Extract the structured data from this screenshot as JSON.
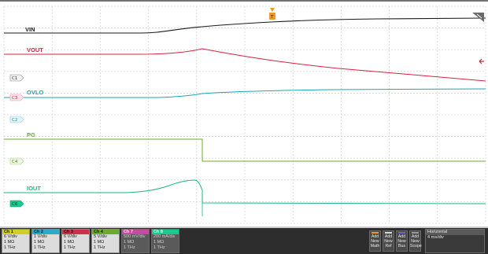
{
  "traces": {
    "vin": {
      "label": "VIN",
      "color": "#1a1a1a"
    },
    "vout": {
      "label": "VOUT",
      "color": "#d8213f"
    },
    "ovlo": {
      "label": "OVLO",
      "color": "#1aa6b7"
    },
    "pg": {
      "label": "PG",
      "color": "#6cab2f"
    },
    "iout": {
      "label": "IOUT",
      "color": "#19b77e"
    }
  },
  "markers": {
    "c1": "C1",
    "c2": "C2",
    "c3": "C3",
    "c4": "C4",
    "c6": "C6",
    "trigger": "T"
  },
  "channels": [
    {
      "name": "Ch 1",
      "scale": "6 V/div",
      "impedance": "1 MΩ",
      "bw": "1 THz",
      "color": "#cfcf2a"
    },
    {
      "name": "Ch 2",
      "scale": "1 V/div",
      "impedance": "1 MΩ",
      "bw": "1 THz",
      "color": "#2aa9c9"
    },
    {
      "name": "Ch 3",
      "scale": "6 V/div",
      "impedance": "1 MΩ",
      "bw": "1 THz",
      "color": "#c8324a"
    },
    {
      "name": "Ch 4",
      "scale": "5 V/div",
      "impedance": "1 MΩ",
      "bw": "1 THz",
      "color": "#6cab2f"
    },
    {
      "name": "Ch 7",
      "scale": "500 mV/div",
      "impedance": "1 MΩ",
      "bw": "1 THz",
      "color": "#c34d9c"
    },
    {
      "name": "Ch 8",
      "scale": "200 mA/div",
      "impedance": "1 MΩ",
      "bw": "1 THz",
      "color": "#19c98d"
    }
  ],
  "buttons": [
    {
      "l1": "Add",
      "l2": "New",
      "l3": "Math",
      "color": "#e89a2a"
    },
    {
      "l1": "Add",
      "l2": "New",
      "l3": "Ref",
      "color": "#d8d8d8"
    },
    {
      "l1": "Add",
      "l2": "New",
      "l3": "Bus",
      "color": "#7b5cc4"
    },
    {
      "l1": "Add",
      "l2": "New",
      "l3": "Scope",
      "color": "#9a9a9a"
    }
  ],
  "horizontal": {
    "title": "Horizontal",
    "scale": "4 ms/div"
  },
  "colors": {
    "grid": "#c9c9c9",
    "background": "#ffffff",
    "statusbar": "#2d2d2d"
  }
}
